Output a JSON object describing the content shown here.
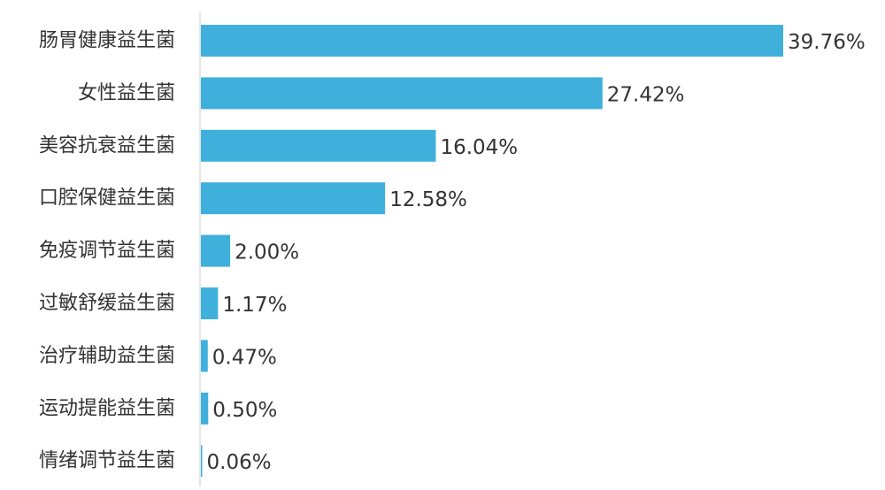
{
  "chart_data": {
    "type": "bar",
    "orientation": "horizontal",
    "categories": [
      "肠胃健康益生菌",
      "女性益生菌",
      "美容抗衰益生菌",
      "口腔保健益生菌",
      "免疫调节益生菌",
      "过敏舒缓益生菌",
      "治疗辅助益生菌",
      "运动提能益生菌",
      "情绪调节益生菌"
    ],
    "values": [
      39.76,
      27.42,
      16.04,
      12.58,
      2.0,
      1.17,
      0.47,
      0.5,
      0.06
    ],
    "value_labels": [
      "39.76%",
      "27.42%",
      "16.04%",
      "12.58%",
      "2.00%",
      "1.17%",
      "0.47%",
      "0.50%",
      "0.06%"
    ],
    "xlim": [
      0,
      39.76
    ],
    "grid": false,
    "legend": "none",
    "colors": {
      "bar": "#3fb0dc",
      "axis": "#cccccc",
      "text": "#333333"
    }
  }
}
